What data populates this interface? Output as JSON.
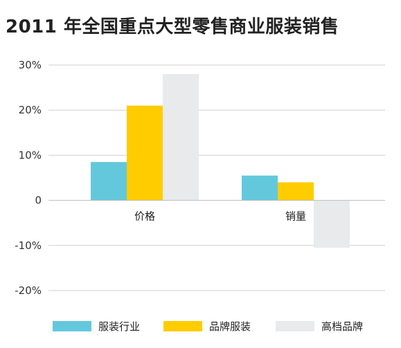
{
  "title": "2011 年全国重点大型零售商业服装销售",
  "chart_data": {
    "type": "bar",
    "categories": [
      "价格",
      "销量"
    ],
    "series": [
      {
        "name": "服装行业",
        "color": "#63C8DC",
        "values": [
          8.5,
          5.5
        ]
      },
      {
        "name": "品牌服装",
        "color": "#FFCC00",
        "values": [
          21,
          4
        ]
      },
      {
        "name": "高档品牌",
        "color": "#E9EAEB",
        "values": [
          28,
          -10.5
        ]
      }
    ],
    "ylim": [
      -20,
      30
    ],
    "yticks": [
      30,
      20,
      10,
      0,
      -10,
      -20
    ],
    "ytick_labels": [
      "30%",
      "20%",
      "10%",
      "0",
      "-10%",
      "-20%"
    ],
    "grid": true,
    "legend_position": "bottom",
    "xlabel": "",
    "ylabel": ""
  }
}
